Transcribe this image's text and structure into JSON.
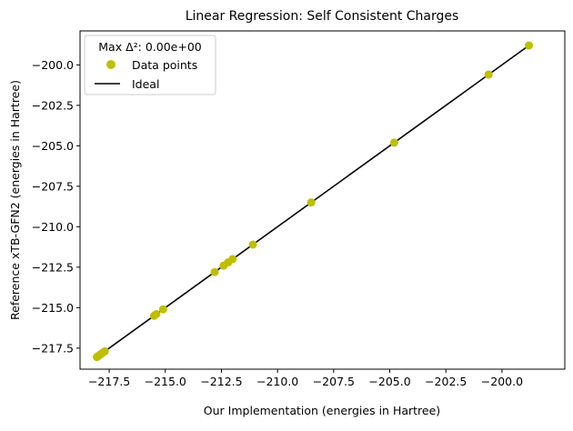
{
  "chart_data": {
    "type": "scatter",
    "title": "Linear Regression: Self Consistent Charges",
    "xlabel": "Our Implementation (energies in Hartree)",
    "ylabel": "Reference xTB-GFN2 (energies in Hartree)",
    "xlim": [
      -218.8,
      -197.2
    ],
    "ylim": [
      -218.8,
      -197.9
    ],
    "x_ticks": [
      -217.5,
      -215.0,
      -212.5,
      -210.0,
      -207.5,
      -205.0,
      -202.5,
      -200.0
    ],
    "x_tick_labels": [
      "−217.5",
      "−215.0",
      "−212.5",
      "−210.0",
      "−207.5",
      "−205.0",
      "−202.5",
      "−200.0"
    ],
    "y_ticks": [
      -217.5,
      -215.0,
      -212.5,
      -210.0,
      -207.5,
      -205.0,
      -202.5,
      -200.0
    ],
    "y_tick_labels": [
      "−217.5",
      "−215.0",
      "−212.5",
      "−210.0",
      "−207.5",
      "−205.0",
      "−202.5",
      "−200.0"
    ],
    "grid": false,
    "legend": {
      "placement": "top-left",
      "title": "Max Δ²: 0.00e+00",
      "entries": [
        {
          "label": "Data points",
          "marker": "circle",
          "color": "#bfbf00"
        },
        {
          "label": "Ideal",
          "marker": "line",
          "color": "#000000"
        }
      ]
    },
    "series": [
      {
        "name": "Data points",
        "color": "#bfbf00",
        "points": [
          {
            "x": -198.8,
            "y": -198.8
          },
          {
            "x": -200.6,
            "y": -200.6
          },
          {
            "x": -204.8,
            "y": -204.8
          },
          {
            "x": -208.5,
            "y": -208.5
          },
          {
            "x": -211.1,
            "y": -211.1
          },
          {
            "x": -212.0,
            "y": -212.0
          },
          {
            "x": -212.2,
            "y": -212.2
          },
          {
            "x": -212.4,
            "y": -212.4
          },
          {
            "x": -212.8,
            "y": -212.8
          },
          {
            "x": -215.1,
            "y": -215.1
          },
          {
            "x": -215.4,
            "y": -215.4
          },
          {
            "x": -215.5,
            "y": -215.5
          },
          {
            "x": -217.7,
            "y": -217.7
          },
          {
            "x": -217.8,
            "y": -217.8
          },
          {
            "x": -217.9,
            "y": -217.9
          },
          {
            "x": -218.0,
            "y": -218.0
          },
          {
            "x": -218.05,
            "y": -218.05
          }
        ]
      },
      {
        "name": "Ideal",
        "color": "#000000",
        "line": [
          {
            "x": -218.05,
            "y": -218.05
          },
          {
            "x": -198.8,
            "y": -198.8
          }
        ]
      }
    ]
  }
}
